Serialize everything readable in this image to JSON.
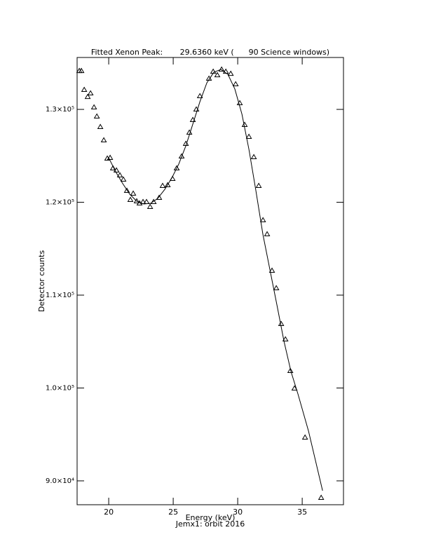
{
  "chart_data": {
    "type": "scatter",
    "title": "Fitted Xenon Peak:       29.6360 keV (      90 Science windows)",
    "x_label": "Energy (keV)",
    "subtitle": "Jemx1: orbit 2016",
    "y_label": "Detector counts",
    "xlim": [
      17.55,
      38.2
    ],
    "xticks": [
      20,
      25,
      30,
      35
    ],
    "ylim": [
      87430,
      135590
    ],
    "yticks": [
      {
        "value": 90000,
        "label": "9.0×10⁴"
      },
      {
        "value": 100000,
        "label": "1.0×10⁵"
      },
      {
        "value": 110000,
        "label": "1.1×10⁵"
      },
      {
        "value": 120000,
        "label": "1.2×10⁵"
      },
      {
        "value": 130000,
        "label": "1.3×10⁵"
      }
    ],
    "series": [
      {
        "color": "#000000",
        "marker": "triangle",
        "x": [
          17.72,
          17.88,
          18.1,
          18.37,
          18.59,
          18.86,
          19.08,
          19.35,
          19.62,
          19.89,
          20.11,
          20.33,
          20.6,
          20.87,
          21.14,
          21.41,
          21.68,
          21.9,
          22.17,
          22.39,
          22.66,
          22.93,
          23.21,
          23.48,
          23.91,
          24.18,
          24.57,
          24.95,
          25.27,
          25.65,
          25.98,
          26.25,
          26.52,
          26.79,
          27.07,
          27.77,
          28.1,
          28.42,
          28.75,
          29.08,
          29.46,
          29.84,
          30.16,
          30.54,
          30.87,
          31.25,
          31.63,
          31.96,
          32.28,
          32.66,
          32.99,
          33.37,
          33.7,
          34.08,
          34.4,
          35.22,
          36.47
        ],
        "values": [
          134151,
          134151,
          132113,
          131358,
          131736,
          130226,
          129245,
          128113,
          126679,
          124717,
          124792,
          123660,
          123434,
          122906,
          122453,
          121245,
          120264,
          120943,
          120113,
          119887,
          120038,
          120038,
          119509,
          120038,
          120491,
          121774,
          121849,
          122528,
          123660,
          124943,
          126302,
          127509,
          128868,
          130000,
          131434,
          133321,
          134075,
          133698,
          134302,
          134075,
          133849,
          132717,
          130679,
          128340,
          127057,
          124868,
          121774,
          118075,
          116566,
          112642,
          110755,
          106906,
          105245,
          101849,
          99962,
          94679,
          88189
        ]
      },
      {
        "color": "#000000",
        "marker": "line",
        "x": [
          20.0,
          20.54,
          21.09,
          21.63,
          22.17,
          22.72,
          23.26,
          23.8,
          24.35,
          24.89,
          25.43,
          25.98,
          26.52,
          27.07,
          27.61,
          28.15,
          28.7,
          29.24,
          29.78,
          30.33,
          30.87,
          31.41,
          31.96,
          32.5,
          33.04,
          33.59,
          34.13,
          34.67,
          35.49,
          36.58
        ],
        "values": [
          124792,
          123283,
          122000,
          120868,
          120113,
          119811,
          119887,
          120415,
          121396,
          122604,
          124113,
          126075,
          128415,
          130830,
          132868,
          134000,
          134302,
          133774,
          132189,
          129472,
          125698,
          121245,
          116491,
          112717,
          108943,
          105019,
          101774,
          99359,
          95358,
          88943
        ]
      }
    ]
  }
}
